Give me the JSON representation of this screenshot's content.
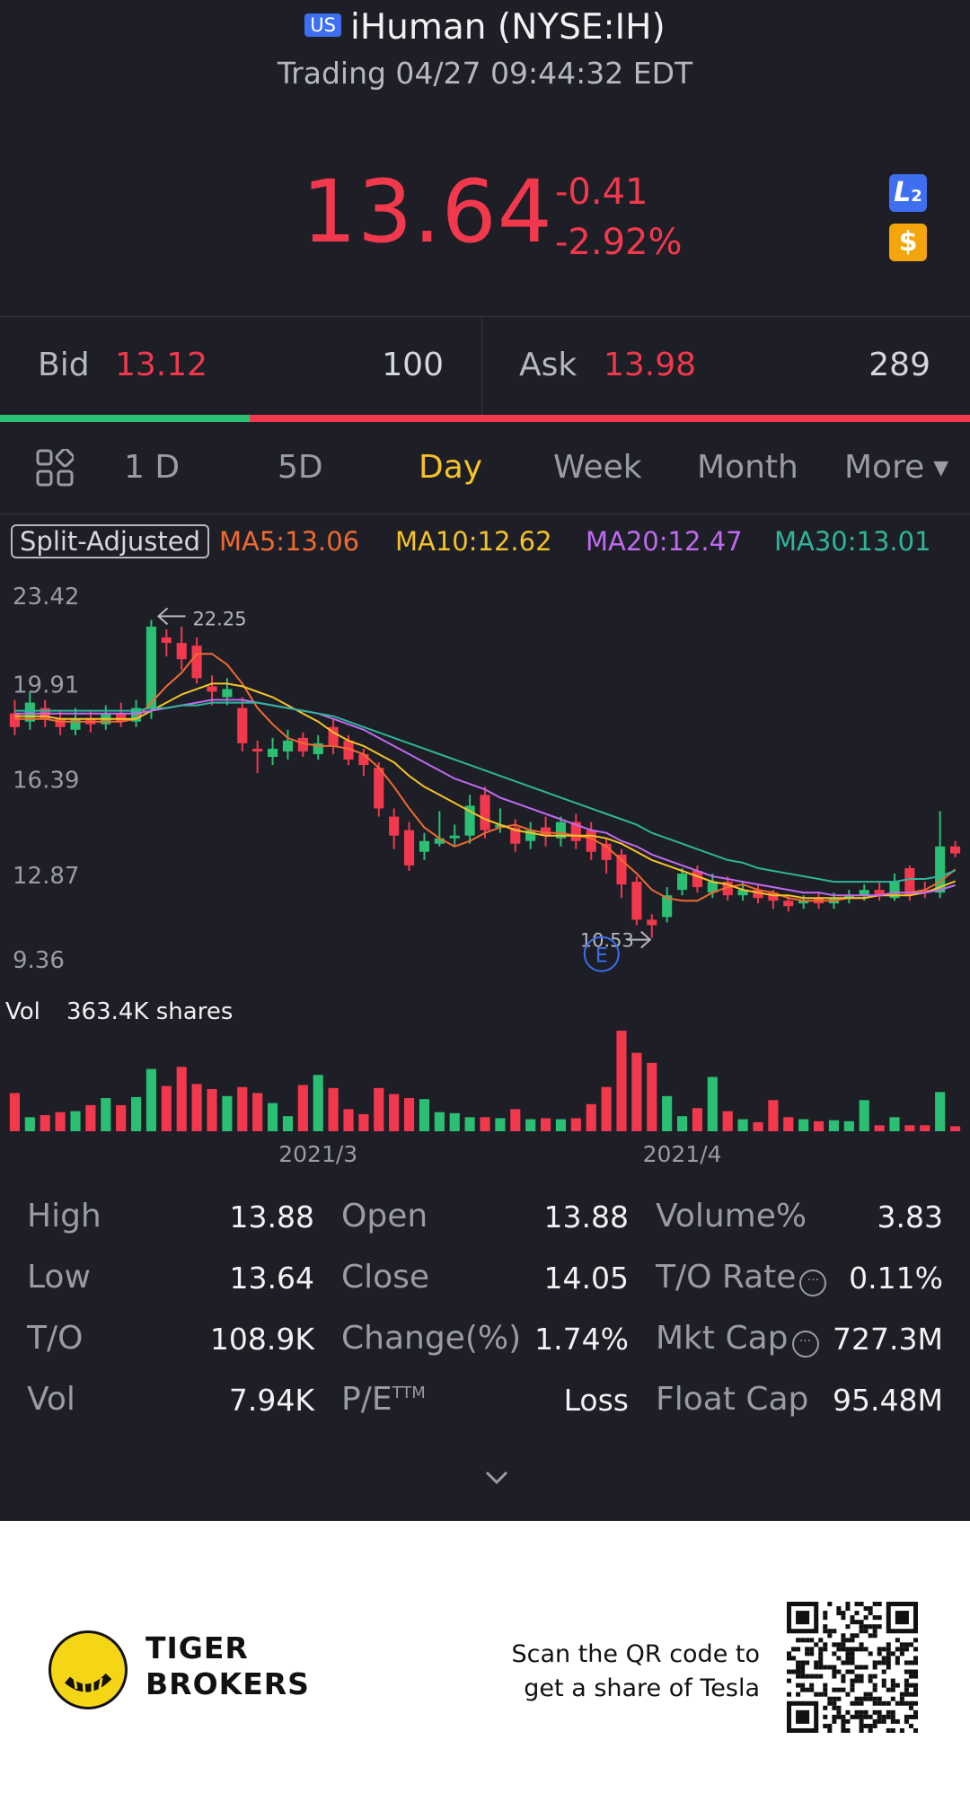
{
  "header": {
    "market_badge": "US",
    "title": "iHuman (NYSE:IH)",
    "status": "Trading 04/27 09:44:32 EDT",
    "price": "13.64",
    "change": "-0.41",
    "change_pct": "-2.92%",
    "l2_label": "L",
    "l2_sub": "2",
    "currency_label": "$"
  },
  "quote": {
    "bid_label": "Bid",
    "bid": "13.12",
    "bid_size": "100",
    "ask_label": "Ask",
    "ask": "13.98",
    "ask_size": "289",
    "bid_ratio": 0.257
  },
  "tabs": [
    "1 D",
    "5D",
    "Day",
    "Week",
    "Month",
    "More"
  ],
  "active_tab": "Day",
  "ma": {
    "split_label": "Split-Adjusted",
    "ma5": "MA5:13.06",
    "ma10": "MA10:12.62",
    "ma20": "MA20:12.47",
    "ma30": "MA30:13.01"
  },
  "chart_data": {
    "type": "candlestick",
    "y_ticks": [
      "23.42",
      "19.91",
      "16.39",
      "12.87",
      "9.36"
    ],
    "y_range": [
      9.36,
      23.42
    ],
    "high_marker": "22.25",
    "low_marker": "10.53",
    "event_marker": "E",
    "x_ticks": [
      {
        "label": "2021/3",
        "index": 20
      },
      {
        "label": "2021/4",
        "index": 44
      }
    ],
    "candles": [
      {
        "o": 18.8,
        "c": 18.3,
        "h": 19.3,
        "l": 18.0
      },
      {
        "o": 18.5,
        "c": 19.2,
        "h": 19.6,
        "l": 18.2
      },
      {
        "o": 19.0,
        "c": 18.6,
        "h": 19.3,
        "l": 18.3
      },
      {
        "o": 18.6,
        "c": 18.3,
        "h": 18.9,
        "l": 18.0
      },
      {
        "o": 18.2,
        "c": 18.6,
        "h": 19.0,
        "l": 18.0
      },
      {
        "o": 18.6,
        "c": 18.4,
        "h": 18.9,
        "l": 18.1
      },
      {
        "o": 18.4,
        "c": 18.8,
        "h": 19.1,
        "l": 18.2
      },
      {
        "o": 18.8,
        "c": 18.5,
        "h": 19.2,
        "l": 18.3
      },
      {
        "o": 18.5,
        "c": 19.0,
        "h": 19.3,
        "l": 18.3
      },
      {
        "o": 19.0,
        "c": 22.0,
        "h": 22.25,
        "l": 18.6
      },
      {
        "o": 21.6,
        "c": 21.4,
        "h": 21.9,
        "l": 20.9
      },
      {
        "o": 21.4,
        "c": 20.8,
        "h": 22.0,
        "l": 20.4
      },
      {
        "o": 21.3,
        "c": 20.1,
        "h": 21.6,
        "l": 19.9
      },
      {
        "o": 19.8,
        "c": 19.6,
        "h": 20.2,
        "l": 19.1
      },
      {
        "o": 19.4,
        "c": 19.7,
        "h": 20.1,
        "l": 19.1
      },
      {
        "o": 19.0,
        "c": 17.7,
        "h": 19.4,
        "l": 17.4
      },
      {
        "o": 17.5,
        "c": 17.4,
        "h": 17.8,
        "l": 16.6
      },
      {
        "o": 17.2,
        "c": 17.5,
        "h": 17.9,
        "l": 16.9
      },
      {
        "o": 17.4,
        "c": 17.8,
        "h": 18.2,
        "l": 17.1
      },
      {
        "o": 17.9,
        "c": 17.4,
        "h": 18.1,
        "l": 17.2
      },
      {
        "o": 17.3,
        "c": 17.7,
        "h": 18.0,
        "l": 17.1
      },
      {
        "o": 18.3,
        "c": 17.6,
        "h": 18.6,
        "l": 17.3
      },
      {
        "o": 17.8,
        "c": 17.1,
        "h": 18.0,
        "l": 16.9
      },
      {
        "o": 17.3,
        "c": 16.9,
        "h": 17.5,
        "l": 16.5
      },
      {
        "o": 16.8,
        "c": 15.3,
        "h": 17.0,
        "l": 15.0
      },
      {
        "o": 15.0,
        "c": 14.3,
        "h": 15.3,
        "l": 13.8
      },
      {
        "o": 14.5,
        "c": 13.2,
        "h": 14.8,
        "l": 13.0
      },
      {
        "o": 13.7,
        "c": 14.1,
        "h": 14.4,
        "l": 13.4
      },
      {
        "o": 14.0,
        "c": 14.2,
        "h": 15.2,
        "l": 13.9
      },
      {
        "o": 14.2,
        "c": 14.3,
        "h": 14.7,
        "l": 13.9
      },
      {
        "o": 14.3,
        "c": 15.4,
        "h": 15.8,
        "l": 14.0
      },
      {
        "o": 15.8,
        "c": 14.5,
        "h": 16.1,
        "l": 14.2
      },
      {
        "o": 14.6,
        "c": 14.7,
        "h": 15.3,
        "l": 14.4
      },
      {
        "o": 14.6,
        "c": 14.0,
        "h": 14.9,
        "l": 13.7
      },
      {
        "o": 14.1,
        "c": 14.5,
        "h": 14.8,
        "l": 13.8
      },
      {
        "o": 14.6,
        "c": 14.3,
        "h": 15.0,
        "l": 13.9
      },
      {
        "o": 14.2,
        "c": 14.8,
        "h": 15.0,
        "l": 13.9
      },
      {
        "o": 14.8,
        "c": 14.1,
        "h": 15.1,
        "l": 13.8
      },
      {
        "o": 14.5,
        "c": 13.7,
        "h": 14.8,
        "l": 13.4
      },
      {
        "o": 14.0,
        "c": 13.4,
        "h": 14.2,
        "l": 12.9
      },
      {
        "o": 13.6,
        "c": 12.5,
        "h": 13.8,
        "l": 12.0
      },
      {
        "o": 12.6,
        "c": 11.2,
        "h": 12.8,
        "l": 11.0
      },
      {
        "o": 11.2,
        "c": 11.0,
        "h": 11.4,
        "l": 10.53
      },
      {
        "o": 11.3,
        "c": 12.1,
        "h": 12.4,
        "l": 11.1
      },
      {
        "o": 12.3,
        "c": 12.9,
        "h": 13.1,
        "l": 12.1
      },
      {
        "o": 13.0,
        "c": 12.4,
        "h": 13.2,
        "l": 12.2
      },
      {
        "o": 12.2,
        "c": 12.6,
        "h": 12.9,
        "l": 12.0
      },
      {
        "o": 12.6,
        "c": 12.1,
        "h": 12.8,
        "l": 11.9
      },
      {
        "o": 12.1,
        "c": 12.3,
        "h": 12.6,
        "l": 11.9
      },
      {
        "o": 12.3,
        "c": 12.0,
        "h": 12.5,
        "l": 11.8
      },
      {
        "o": 12.2,
        "c": 11.9,
        "h": 12.3,
        "l": 11.6
      },
      {
        "o": 11.9,
        "c": 11.7,
        "h": 12.1,
        "l": 11.5
      },
      {
        "o": 11.8,
        "c": 11.9,
        "h": 12.1,
        "l": 11.6
      },
      {
        "o": 12.0,
        "c": 11.8,
        "h": 12.2,
        "l": 11.6
      },
      {
        "o": 11.8,
        "c": 12.0,
        "h": 12.2,
        "l": 11.6
      },
      {
        "o": 12.0,
        "c": 12.1,
        "h": 12.3,
        "l": 11.8
      },
      {
        "o": 12.1,
        "c": 12.3,
        "h": 12.5,
        "l": 11.9
      },
      {
        "o": 12.3,
        "c": 12.1,
        "h": 12.6,
        "l": 11.9
      },
      {
        "o": 12.0,
        "c": 12.6,
        "h": 12.9,
        "l": 11.9
      },
      {
        "o": 13.1,
        "c": 12.1,
        "h": 13.2,
        "l": 11.9
      },
      {
        "o": 12.3,
        "c": 12.2,
        "h": 12.6,
        "l": 12.0
      },
      {
        "o": 12.2,
        "c": 13.9,
        "h": 15.2,
        "l": 12.0
      },
      {
        "o": 13.9,
        "c": 13.64,
        "h": 14.1,
        "l": 13.5
      }
    ],
    "ma_lines": [
      {
        "name": "MA5",
        "color": "#f06a31",
        "values": [
          18.6,
          18.6,
          18.6,
          18.5,
          18.5,
          18.5,
          18.5,
          18.5,
          18.6,
          19.2,
          19.8,
          20.3,
          21.0,
          21.0,
          20.6,
          19.9,
          19.0,
          18.4,
          17.9,
          17.7,
          17.6,
          17.6,
          17.5,
          17.3,
          16.8,
          16.1,
          15.3,
          14.6,
          14.2,
          13.9,
          14.1,
          14.4,
          14.6,
          14.7,
          14.5,
          14.4,
          14.4,
          14.3,
          14.2,
          13.9,
          13.4,
          12.9,
          12.3,
          12.0,
          11.9,
          11.9,
          12.2,
          12.4,
          12.5,
          12.3,
          12.2,
          12.0,
          11.9,
          11.9,
          11.9,
          12.0,
          12.0,
          12.1,
          12.2,
          12.2,
          12.3,
          12.6,
          13.06
        ]
      },
      {
        "name": "MA10",
        "color": "#f6c327",
        "values": [
          18.7,
          18.7,
          18.7,
          18.6,
          18.6,
          18.6,
          18.6,
          18.6,
          18.6,
          18.9,
          19.2,
          19.5,
          19.7,
          19.9,
          19.9,
          19.8,
          19.6,
          19.4,
          19.1,
          18.8,
          18.5,
          18.1,
          17.8,
          17.6,
          17.3,
          17.0,
          16.5,
          16.1,
          15.8,
          15.5,
          15.2,
          14.9,
          14.7,
          14.5,
          14.4,
          14.3,
          14.3,
          14.3,
          14.3,
          14.2,
          14.0,
          13.7,
          13.4,
          13.2,
          13.0,
          12.8,
          12.6,
          12.5,
          12.3,
          12.2,
          12.1,
          12.1,
          12.0,
          12.0,
          12.0,
          12.0,
          12.0,
          12.1,
          12.1,
          12.1,
          12.2,
          12.4,
          12.62
        ]
      },
      {
        "name": "MA20",
        "color": "#c16af0",
        "values": [
          18.8,
          18.8,
          18.8,
          18.8,
          18.8,
          18.8,
          18.8,
          18.8,
          18.8,
          18.9,
          19.0,
          19.1,
          19.2,
          19.3,
          19.3,
          19.3,
          19.2,
          19.1,
          19.0,
          18.9,
          18.8,
          18.6,
          18.4,
          18.2,
          17.9,
          17.6,
          17.3,
          17.0,
          16.7,
          16.4,
          16.2,
          16.0,
          15.7,
          15.5,
          15.3,
          15.1,
          14.9,
          14.7,
          14.5,
          14.4,
          14.1,
          13.9,
          13.6,
          13.4,
          13.2,
          13.0,
          12.8,
          12.7,
          12.6,
          12.5,
          12.4,
          12.3,
          12.2,
          12.2,
          12.1,
          12.1,
          12.1,
          12.1,
          12.2,
          12.2,
          12.2,
          12.3,
          12.47
        ]
      },
      {
        "name": "MA30",
        "color": "#2fb59a",
        "values": [
          18.9,
          18.9,
          18.9,
          18.9,
          18.9,
          18.9,
          18.9,
          18.9,
          18.9,
          19.0,
          19.0,
          19.1,
          19.1,
          19.2,
          19.2,
          19.2,
          19.2,
          19.1,
          19.0,
          18.9,
          18.8,
          18.7,
          18.5,
          18.3,
          18.1,
          17.9,
          17.7,
          17.5,
          17.3,
          17.1,
          16.9,
          16.7,
          16.5,
          16.3,
          16.1,
          15.9,
          15.7,
          15.5,
          15.3,
          15.1,
          14.9,
          14.7,
          14.4,
          14.2,
          14.0,
          13.8,
          13.6,
          13.4,
          13.3,
          13.1,
          13.0,
          12.9,
          12.8,
          12.7,
          12.6,
          12.6,
          12.6,
          12.6,
          12.6,
          12.7,
          12.7,
          12.8,
          13.01
        ]
      }
    ],
    "volume_label": "Vol",
    "volume_text": "363.4K shares",
    "volume": [
      0.38,
      0.14,
      0.16,
      0.19,
      0.2,
      0.26,
      0.33,
      0.26,
      0.34,
      0.62,
      0.45,
      0.64,
      0.47,
      0.42,
      0.35,
      0.44,
      0.38,
      0.28,
      0.15,
      0.46,
      0.56,
      0.43,
      0.22,
      0.17,
      0.43,
      0.37,
      0.33,
      0.32,
      0.19,
      0.18,
      0.14,
      0.14,
      0.13,
      0.22,
      0.12,
      0.13,
      0.12,
      0.13,
      0.27,
      0.44,
      1.0,
      0.78,
      0.68,
      0.35,
      0.15,
      0.23,
      0.54,
      0.2,
      0.12,
      0.09,
      0.31,
      0.14,
      0.12,
      0.1,
      0.11,
      0.1,
      0.31,
      0.06,
      0.14,
      0.06,
      0.06,
      0.39,
      0.05
    ]
  },
  "stats": {
    "high_label": "High",
    "high": "13.88",
    "low_label": "Low",
    "low": "13.64",
    "to_label": "T/O",
    "to": "108.9K",
    "vol_label": "Vol",
    "vol": "7.94K",
    "open_label": "Open",
    "open": "13.88",
    "close_label": "Close",
    "close": "14.05",
    "chg_label": "Change(%)",
    "chg": "1.74%",
    "pe_label": "P/E",
    "pe_sup": "TTM",
    "pe": "Loss",
    "volpct_label": "Volume%",
    "volpct": "3.83",
    "torate_label": "T/O Rate",
    "torate": "0.11%",
    "mktcap_label": "Mkt Cap",
    "mktcap": "727.3M",
    "floatcap_label": "Float Cap",
    "floatcap": "95.48M"
  },
  "footer": {
    "brand_line1": "TIGER",
    "brand_line2": "BROKERS",
    "scan_line1": "Scan the QR code to",
    "scan_line2": "get a share of Tesla"
  },
  "colors": {
    "up": "#2bbf73",
    "down": "#f2384d",
    "accent": "#f6c327",
    "bg": "#1d1e26"
  }
}
